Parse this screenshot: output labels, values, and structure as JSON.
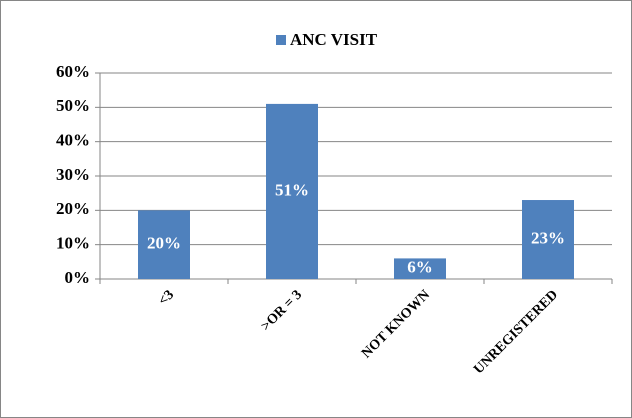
{
  "chart_data": {
    "type": "bar",
    "categories": [
      "<3",
      ">OR = 3",
      "NOT KNOWN",
      "UNREGISTERED"
    ],
    "series": [
      {
        "name": "ANC VISIT",
        "color": "#4f81bd",
        "values": [
          20,
          51,
          6,
          23
        ],
        "value_labels": [
          "20%",
          "51%",
          "6%",
          "23%"
        ]
      }
    ],
    "ylim": [
      0,
      60
    ],
    "yticks": [
      {
        "value": 0,
        "label": "0%"
      },
      {
        "value": 10,
        "label": "10%"
      },
      {
        "value": 20,
        "label": "20%"
      },
      {
        "value": 30,
        "label": "30%"
      },
      {
        "value": 40,
        "label": "40%"
      },
      {
        "value": 50,
        "label": "50%"
      },
      {
        "value": 60,
        "label": "60%"
      }
    ],
    "grid": true,
    "legend": "top"
  }
}
